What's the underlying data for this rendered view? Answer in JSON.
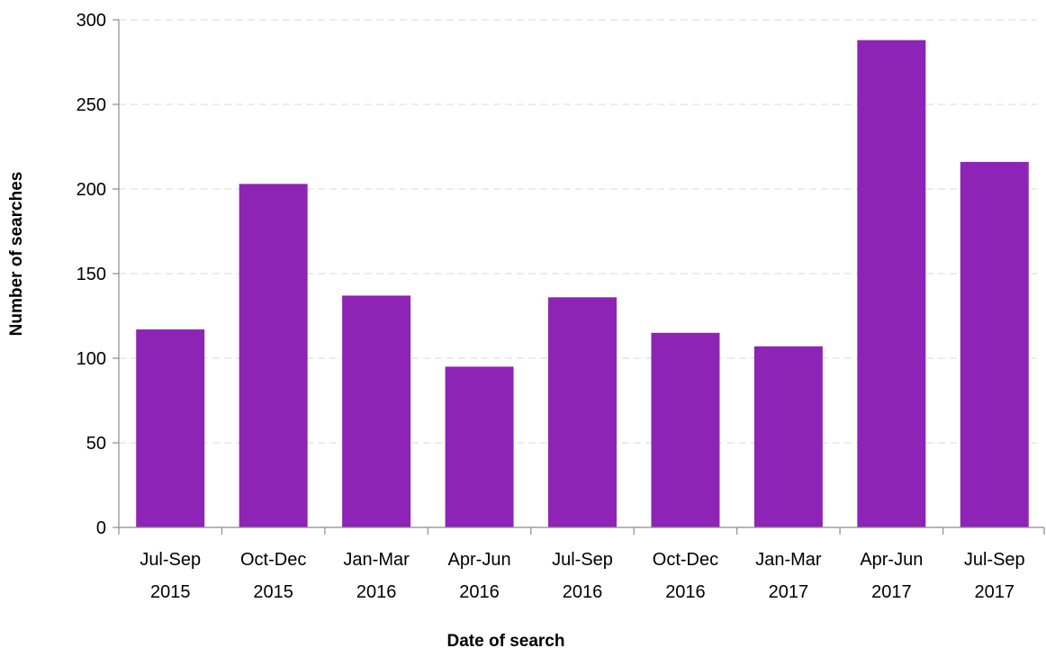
{
  "chart_data": {
    "type": "bar",
    "title": "",
    "xlabel": "Date of search",
    "ylabel": "Number of searches",
    "ylim": [
      0,
      300
    ],
    "yticks": [
      0,
      50,
      100,
      150,
      200,
      250,
      300
    ],
    "grid": true,
    "legend": "none",
    "categories": [
      [
        "Jul-Sep",
        "2015"
      ],
      [
        "Oct-Dec",
        "2015"
      ],
      [
        "Jan-Mar",
        "2016"
      ],
      [
        "Apr-Jun",
        "2016"
      ],
      [
        "Jul-Sep",
        "2016"
      ],
      [
        "Oct-Dec",
        "2016"
      ],
      [
        "Jan-Mar",
        "2017"
      ],
      [
        "Apr-Jun",
        "2017"
      ],
      [
        "Jul-Sep",
        "2017"
      ]
    ],
    "values": [
      117,
      203,
      137,
      95,
      136,
      115,
      107,
      288,
      216
    ],
    "bar_color": "#8e24b5"
  }
}
